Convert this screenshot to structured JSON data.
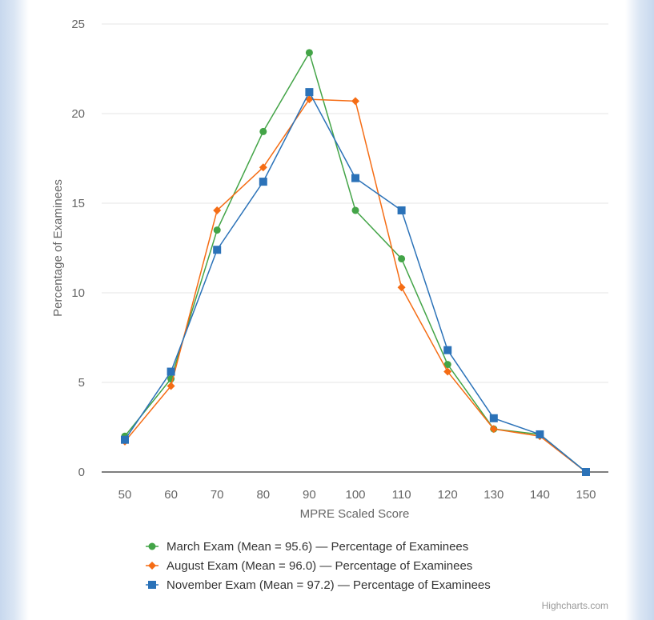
{
  "chart_data": {
    "type": "line",
    "title": "",
    "xlabel": "MPRE Scaled Score",
    "ylabel": "Percentage of Examinees",
    "x": [
      50,
      60,
      70,
      80,
      90,
      100,
      110,
      120,
      130,
      140,
      150
    ],
    "ylim": [
      0,
      25
    ],
    "yticks": [
      0,
      5,
      10,
      15,
      20,
      25
    ],
    "grid": true,
    "legend_position": "bottom",
    "series": [
      {
        "name": "March Exam (Mean = 95.6) — Percentage of Examinees",
        "color": "#43a447",
        "marker": "circle",
        "values": [
          2.0,
          5.2,
          13.5,
          19.0,
          23.4,
          14.6,
          11.9,
          6.0,
          2.4,
          2.1,
          0.0
        ]
      },
      {
        "name": "August Exam (Mean = 96.0) — Percentage of Examinees",
        "color": "#f56c14",
        "marker": "diamond",
        "values": [
          1.7,
          4.8,
          14.6,
          17.0,
          20.8,
          20.7,
          10.3,
          5.6,
          2.4,
          2.0,
          0.0
        ]
      },
      {
        "name": "November Exam (Mean = 97.2) — Percentage of Examinees",
        "color": "#2b72b8",
        "marker": "square",
        "values": [
          1.8,
          5.6,
          12.4,
          16.2,
          21.2,
          16.4,
          14.6,
          6.8,
          3.0,
          2.1,
          0.0
        ]
      }
    ]
  },
  "credits": "Highcharts.com"
}
